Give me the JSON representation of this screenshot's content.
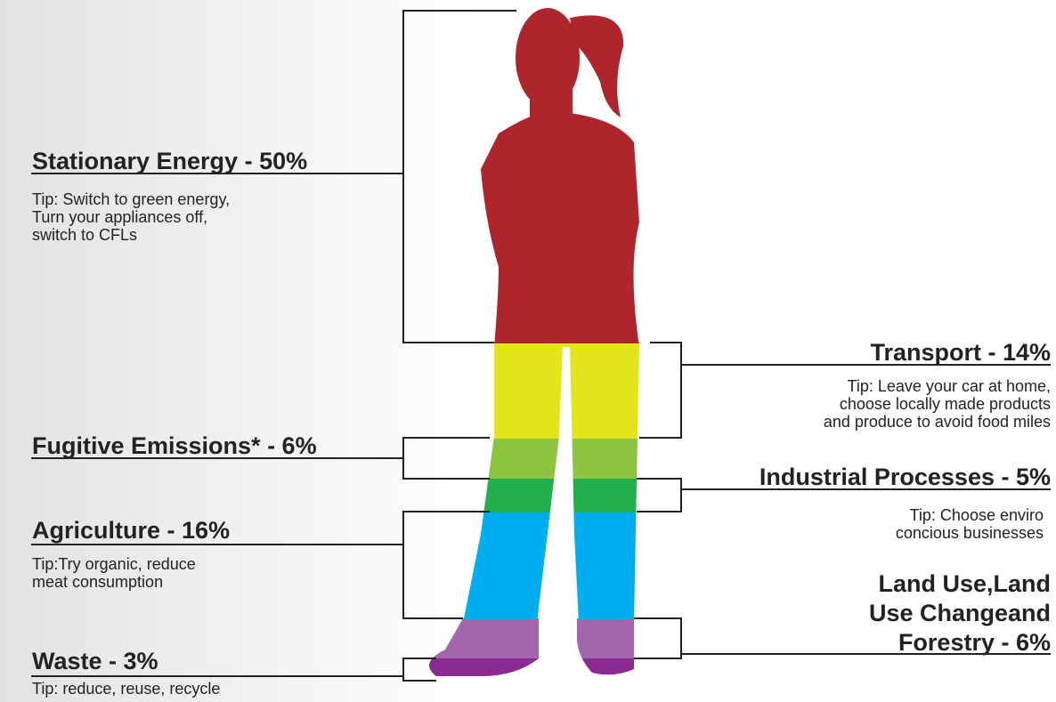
{
  "items": [
    {
      "title": [
        "Stationary Energy - 50%"
      ],
      "tip": [
        "Tip: Switch to green energy,",
        "Turn your appliances off,",
        "switch to CFLs"
      ]
    },
    {
      "title": [
        "Transport - 14%"
      ],
      "tip": [
        "Tip: Leave your car at home,",
        "choose locally made products",
        "and produce to avoid food miles"
      ]
    },
    {
      "title": [
        "Fugitive Emissions* - 6%"
      ]
    },
    {
      "title": [
        "Industrial Processes - 5%"
      ],
      "tip": [
        "Tip: Choose enviro",
        "concious businesses"
      ]
    },
    {
      "title": [
        "Agriculture - 16%"
      ],
      "tip": [
        "Tip:Try organic, reduce",
        "meat consumption"
      ]
    },
    {
      "title": [
        "Land Use,Land",
        "Use Changeand",
        "Forestry - 6%"
      ]
    },
    {
      "title": [
        "Waste - 3%"
      ],
      "tip": [
        "Tip: reduce, reuse, recycle"
      ]
    }
  ]
}
